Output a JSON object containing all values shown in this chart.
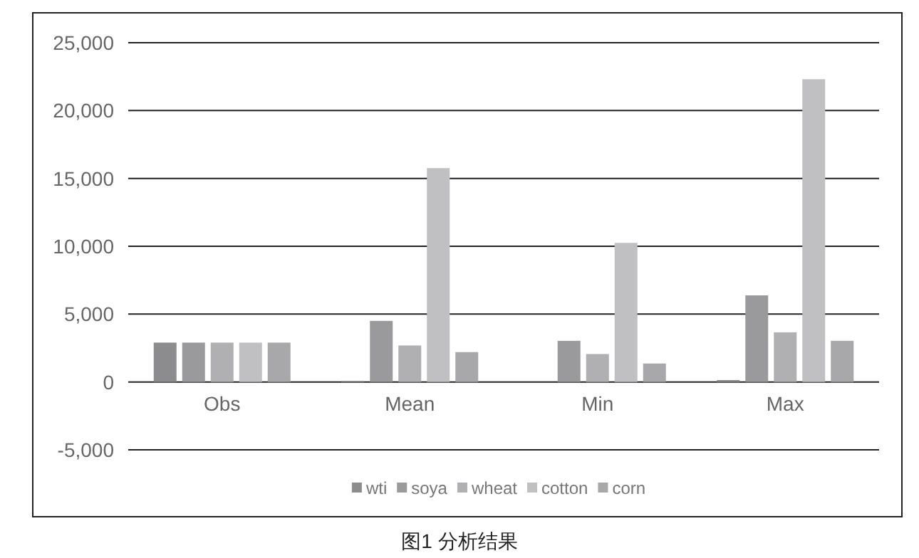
{
  "chart_data": {
    "type": "bar",
    "categories": [
      "Obs",
      "Mean",
      "Min",
      "Max"
    ],
    "series": [
      {
        "name": "wti",
        "color": "#8c8c8e",
        "values": [
          2900,
          70,
          0,
          140
        ]
      },
      {
        "name": "soya",
        "color": "#9a9a9c",
        "values": [
          2900,
          4500,
          3030,
          6380
        ]
      },
      {
        "name": "wheat",
        "color": "#b0b0b2",
        "values": [
          2900,
          2690,
          2060,
          3660
        ]
      },
      {
        "name": "cotton",
        "color": "#c0c0c2",
        "values": [
          2900,
          15760,
          10250,
          22310
        ]
      },
      {
        "name": "corn",
        "color": "#a8a8aa",
        "values": [
          2900,
          2200,
          1360,
          3030
        ]
      }
    ],
    "ylim": [
      -5000,
      25000
    ],
    "yticks": [
      {
        "value": -5000,
        "label": "-5,000"
      },
      0,
      {
        "value": 5000,
        "label": "5,000"
      },
      {
        "value": 10000,
        "label": "10,000"
      },
      {
        "value": 15000,
        "label": "15,000"
      },
      {
        "value": 20000,
        "label": "20,000"
      },
      {
        "value": 25000,
        "label": "25,000"
      }
    ],
    "grid": "y",
    "legend": "bottom",
    "annotations": [
      "图1 分析结果"
    ]
  }
}
